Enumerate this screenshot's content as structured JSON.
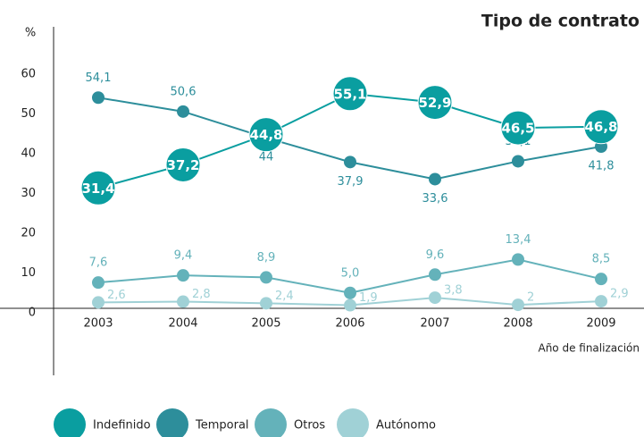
{
  "chart_data": {
    "type": "line",
    "title": "Tipo de contrato",
    "y_label": "%",
    "x_label": "Año de finalización",
    "categories": [
      "2003",
      "2004",
      "2005",
      "2006",
      "2007",
      "2008",
      "2009"
    ],
    "ylim": [
      0,
      60
    ],
    "yticks": [
      0,
      10,
      20,
      30,
      40,
      50,
      60
    ],
    "series": [
      {
        "name": "Indefinido",
        "color": "#0a9ea0",
        "values": [
          31.4,
          37.2,
          44.8,
          55.1,
          52.9,
          46.5,
          46.8
        ],
        "value_labels": [
          "31,4",
          "37,2",
          "44,8",
          "55,1",
          "52,9",
          "46,5",
          "46,8"
        ]
      },
      {
        "name": "Temporal",
        "color": "#2d8e9b",
        "values": [
          54.1,
          50.6,
          44,
          37.9,
          33.6,
          38.1,
          41.8
        ],
        "value_labels": [
          "54,1",
          "50,6",
          "44",
          "37,9",
          "33,6",
          "38,1",
          "41,8"
        ]
      },
      {
        "name": "Otros",
        "color": "#64b2ba",
        "values": [
          7.6,
          9.4,
          8.9,
          5,
          9.6,
          13.4,
          8.5
        ],
        "value_labels": [
          "7,6",
          "9,4",
          "8,9",
          "5,0",
          "9,6",
          "13,4",
          "8,5"
        ]
      },
      {
        "name": "Autónomo",
        "color": "#a0d1d6",
        "values": [
          2.6,
          2.8,
          2.4,
          1.9,
          3.8,
          2,
          2.9
        ],
        "value_labels": [
          "2,6",
          "2,8",
          "2,4",
          "1,9",
          "3,8",
          "2",
          "2,9"
        ]
      }
    ]
  }
}
